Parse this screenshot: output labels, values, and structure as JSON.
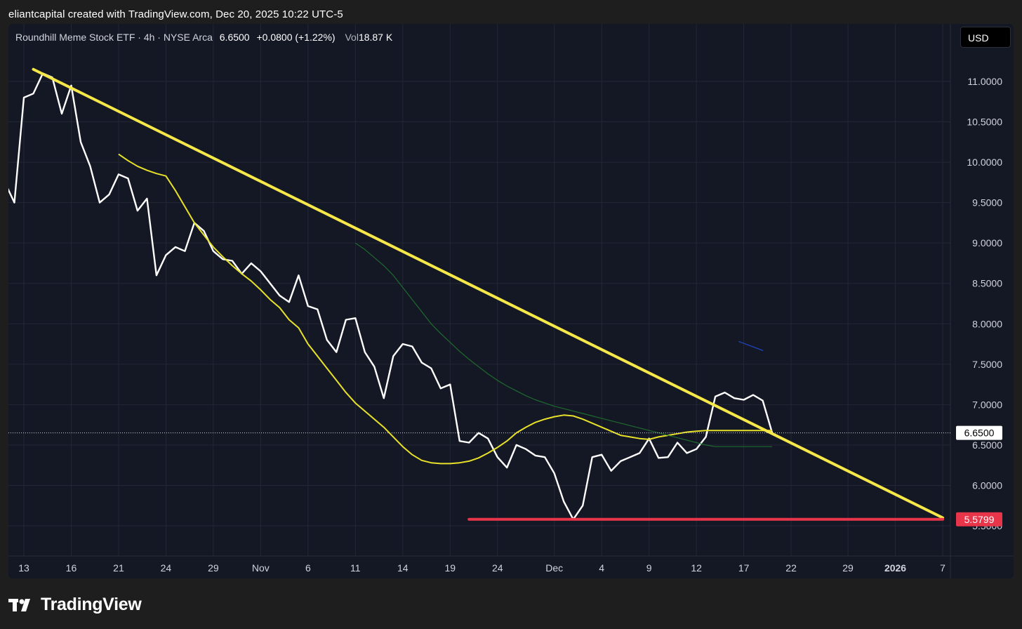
{
  "caption": "eliantcapital created with TradingView.com, Dec 20, 2025 10:22 UTC-5",
  "legend": {
    "symbol": "Roundhill Meme Stock ETF · 4h · NYSE Arca",
    "price": "6.6500",
    "change": "+0.0800 (+1.22%)",
    "volume_label": "Vol",
    "volume": "18.87 K"
  },
  "currency": "USD",
  "brand": "TradingView",
  "colors": {
    "background": "#141724",
    "price_line": "#ffffff",
    "trendline": "#f7e84a",
    "ma_fast": "#e8e12a",
    "ma_slow": "#1e6b2e",
    "support": "#e8354a",
    "grid": "#232736",
    "axis_text": "#b2b5be"
  },
  "chart_data": {
    "type": "line",
    "title": "Roundhill Meme Stock ETF · 4h · NYSE Arca",
    "x_tick_labels": [
      "13",
      "16",
      "21",
      "24",
      "29",
      "Nov",
      "6",
      "11",
      "14",
      "19",
      "24",
      "Dec",
      "4",
      "9",
      "12",
      "17",
      "22",
      "29",
      "2026",
      "7"
    ],
    "y_ticks": [
      5.5,
      6.0,
      6.5,
      7.0,
      7.5,
      8.0,
      8.5,
      9.0,
      9.5,
      10.0,
      10.5,
      11.0
    ],
    "ylim": [
      5.2,
      11.5
    ],
    "x_range": [
      0,
      100
    ],
    "x_tick_positions": [
      2,
      7,
      12,
      17,
      22,
      27,
      32,
      37,
      42,
      47,
      52,
      58,
      63,
      68,
      73,
      78,
      83,
      89,
      94,
      99
    ],
    "series": [
      {
        "kind": "price",
        "x": [
          0,
          1,
          2,
          3,
          4,
          5,
          6,
          7,
          8,
          9,
          10,
          11,
          12,
          13,
          14,
          15,
          16,
          17,
          18,
          19,
          20,
          21,
          22,
          23,
          24,
          25,
          26,
          27,
          28,
          29,
          30,
          31,
          32,
          33,
          34,
          35,
          36,
          37,
          38,
          39,
          40,
          41,
          42,
          43,
          44,
          45,
          46,
          47,
          48,
          49,
          50,
          51,
          52,
          53,
          54,
          55,
          56,
          57,
          58,
          59,
          60,
          61,
          62,
          63,
          64,
          65,
          66,
          67,
          68,
          69,
          70,
          71,
          72,
          73,
          74,
          75,
          76,
          77,
          78,
          79,
          80,
          81
        ],
        "y": [
          9.75,
          9.5,
          10.8,
          10.85,
          11.1,
          11.05,
          10.6,
          10.95,
          10.25,
          9.95,
          9.5,
          9.6,
          9.85,
          9.8,
          9.4,
          9.55,
          8.6,
          8.85,
          8.95,
          8.9,
          9.25,
          9.15,
          8.9,
          8.8,
          8.78,
          8.62,
          8.75,
          8.65,
          8.5,
          8.35,
          8.27,
          8.6,
          8.22,
          8.18,
          7.8,
          7.65,
          8.05,
          8.07,
          7.65,
          7.47,
          7.08,
          7.6,
          7.75,
          7.72,
          7.52,
          7.45,
          7.2,
          7.25,
          6.55,
          6.53,
          6.65,
          6.58,
          6.35,
          6.22,
          6.5,
          6.45,
          6.37,
          6.35,
          6.15,
          5.8,
          5.58,
          5.75,
          6.35,
          6.38,
          6.18,
          6.3,
          6.35,
          6.4,
          6.58,
          6.34,
          6.35,
          6.53,
          6.4,
          6.45,
          6.6,
          7.1,
          7.15,
          7.08,
          7.06,
          7.12,
          7.05,
          6.65
        ],
        "note": ""
      },
      {
        "kind": "ma_fast",
        "x": [
          12,
          13,
          14,
          15,
          16,
          17,
          18,
          19,
          20,
          21,
          22,
          23,
          24,
          25,
          26,
          27,
          28,
          29,
          30,
          31,
          32,
          33,
          34,
          35,
          36,
          37,
          38,
          39,
          40,
          41,
          42,
          43,
          44,
          45,
          46,
          47,
          48,
          49,
          50,
          51,
          52,
          53,
          54,
          55,
          56,
          57,
          58,
          59,
          60,
          61,
          62,
          63,
          64,
          65,
          66,
          67,
          68,
          69,
          70,
          71,
          72,
          73,
          74,
          75,
          76,
          77,
          78,
          79,
          80,
          81
        ],
        "y": [
          10.1,
          10.02,
          9.95,
          9.9,
          9.86,
          9.83,
          9.65,
          9.45,
          9.25,
          9.1,
          8.95,
          8.83,
          8.72,
          8.62,
          8.53,
          8.42,
          8.3,
          8.2,
          8.05,
          7.95,
          7.75,
          7.6,
          7.45,
          7.3,
          7.15,
          7.02,
          6.92,
          6.82,
          6.72,
          6.6,
          6.48,
          6.38,
          6.31,
          6.28,
          6.27,
          6.27,
          6.28,
          6.3,
          6.34,
          6.4,
          6.47,
          6.55,
          6.65,
          6.72,
          6.78,
          6.82,
          6.85,
          6.87,
          6.86,
          6.82,
          6.77,
          6.72,
          6.67,
          6.62,
          6.6,
          6.58,
          6.57,
          6.6,
          6.62,
          6.64,
          6.66,
          6.67,
          6.68,
          6.68,
          6.68,
          6.68,
          6.68,
          6.68,
          6.68,
          6.68
        ]
      },
      {
        "kind": "ma_slow",
        "x": [
          37,
          38,
          39,
          40,
          41,
          42,
          43,
          44,
          45,
          46,
          47,
          48,
          49,
          50,
          51,
          52,
          53,
          54,
          55,
          56,
          57,
          58,
          59,
          60,
          61,
          62,
          63,
          64,
          65,
          66,
          67,
          68,
          69,
          70,
          71,
          72,
          73,
          74,
          75,
          76,
          77,
          78,
          79,
          80,
          81
        ],
        "y": [
          9.0,
          8.92,
          8.82,
          8.72,
          8.6,
          8.45,
          8.3,
          8.15,
          8.0,
          7.88,
          7.77,
          7.66,
          7.56,
          7.47,
          7.38,
          7.3,
          7.23,
          7.17,
          7.11,
          7.06,
          7.02,
          6.98,
          6.95,
          6.92,
          6.89,
          6.86,
          6.83,
          6.8,
          6.77,
          6.74,
          6.71,
          6.68,
          6.65,
          6.62,
          6.59,
          6.56,
          6.53,
          6.5,
          6.48,
          6.48,
          6.48,
          6.48,
          6.48,
          6.48,
          6.48
        ]
      }
    ],
    "annotations": [
      {
        "kind": "trendline",
        "x": [
          3,
          99
        ],
        "y": [
          11.15,
          5.6
        ]
      },
      {
        "kind": "support",
        "x": [
          49,
          99
        ],
        "y": [
          5.58,
          5.58
        ]
      },
      {
        "kind": "small_segment",
        "x": [
          77.5,
          80
        ],
        "y": [
          7.78,
          7.67
        ]
      }
    ],
    "price_labels": [
      {
        "value": "6.6500",
        "y": 6.65,
        "style": "current"
      },
      {
        "value": "5.5799",
        "y": 5.58,
        "style": "support"
      }
    ],
    "ylabel": "",
    "xlabel": ""
  }
}
